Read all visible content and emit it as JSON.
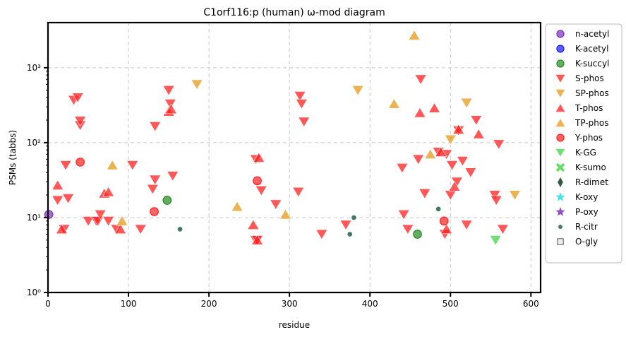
{
  "chart_data": {
    "type": "scatter",
    "title": "C1orf116:p (human) ω-mod diagram",
    "xlabel": "residue",
    "ylabel": "PSMs (tabbs)",
    "xlim": [
      0,
      612
    ],
    "ylim": [
      1,
      4000
    ],
    "yscale": "log",
    "x_ticks": [
      0,
      100,
      200,
      300,
      400,
      500,
      600
    ],
    "x_tick_labels": [
      "0",
      "100",
      "200",
      "300",
      "400",
      "500",
      "600"
    ],
    "y_ticks": [
      1,
      10,
      100,
      1000
    ],
    "y_tick_labels": [
      "10⁰",
      "10¹",
      "10²",
      "10³"
    ],
    "grid": true,
    "legend_position": "outside-right",
    "series": [
      {
        "name": "n-acetyl",
        "marker": "circle",
        "color": "#7f2fbf",
        "points": [
          [
            1,
            11
          ]
        ]
      },
      {
        "name": "K-acetyl",
        "marker": "circle",
        "color": "#1a1aff",
        "points": []
      },
      {
        "name": "K-succyl",
        "marker": "circle",
        "color": "#228b22",
        "points": [
          [
            148,
            17
          ],
          [
            459,
            6
          ]
        ]
      },
      {
        "name": "S-phos",
        "marker": "triangle-down",
        "color": "#ff2020",
        "points": [
          [
            12,
            17
          ],
          [
            20,
            7
          ],
          [
            22,
            50
          ],
          [
            25,
            18
          ],
          [
            32,
            370
          ],
          [
            37,
            400
          ],
          [
            40,
            170
          ],
          [
            40,
            195
          ],
          [
            50,
            9
          ],
          [
            60,
            9
          ],
          [
            62,
            9
          ],
          [
            65,
            11
          ],
          [
            75,
            9
          ],
          [
            85,
            7
          ],
          [
            105,
            50
          ],
          [
            115,
            7
          ],
          [
            130,
            24
          ],
          [
            133,
            32
          ],
          [
            133,
            165
          ],
          [
            150,
            500
          ],
          [
            152,
            330
          ],
          [
            155,
            36
          ],
          [
            258,
            60
          ],
          [
            258,
            5
          ],
          [
            260,
            5
          ],
          [
            265,
            23
          ],
          [
            283,
            15
          ],
          [
            311,
            22
          ],
          [
            313,
            420
          ],
          [
            315,
            330
          ],
          [
            318,
            190
          ],
          [
            340,
            6
          ],
          [
            370,
            8
          ],
          [
            440,
            46
          ],
          [
            442,
            11
          ],
          [
            447,
            7
          ],
          [
            460,
            60
          ],
          [
            463,
            700
          ],
          [
            468,
            21
          ],
          [
            485,
            75
          ],
          [
            493,
            6
          ],
          [
            495,
            70
          ],
          [
            500,
            20
          ],
          [
            502,
            50
          ],
          [
            508,
            30
          ],
          [
            510,
            145
          ],
          [
            515,
            57
          ],
          [
            520,
            8
          ],
          [
            525,
            40
          ],
          [
            532,
            200
          ],
          [
            555,
            20
          ],
          [
            557,
            17
          ],
          [
            560,
            95
          ],
          [
            565,
            7
          ]
        ]
      },
      {
        "name": "SP-phos",
        "marker": "triangle-down",
        "color": "#e69a1a",
        "points": [
          [
            185,
            600
          ],
          [
            385,
            500
          ],
          [
            500,
            110
          ],
          [
            520,
            340
          ],
          [
            580,
            20
          ]
        ]
      },
      {
        "name": "T-phos",
        "marker": "triangle-up",
        "color": "#ff2020",
        "points": [
          [
            12,
            27
          ],
          [
            17,
            7
          ],
          [
            70,
            21
          ],
          [
            75,
            22
          ],
          [
            90,
            7
          ],
          [
            150,
            260
          ],
          [
            153,
            280
          ],
          [
            255,
            8
          ],
          [
            260,
            5
          ],
          [
            262,
            63
          ],
          [
            462,
            250
          ],
          [
            480,
            290
          ],
          [
            488,
            75
          ],
          [
            495,
            7
          ],
          [
            505,
            26
          ],
          [
            510,
            150
          ],
          [
            535,
            130
          ]
        ]
      },
      {
        "name": "TP-phos",
        "marker": "triangle-up",
        "color": "#e69a1a",
        "points": [
          [
            80,
            50
          ],
          [
            92,
            9
          ],
          [
            235,
            14
          ],
          [
            295,
            11
          ],
          [
            430,
            330
          ],
          [
            455,
            2700
          ],
          [
            475,
            70
          ]
        ]
      },
      {
        "name": "Y-phos",
        "marker": "circle",
        "color": "#ff2020",
        "points": [
          [
            40,
            55
          ],
          [
            132,
            12
          ],
          [
            260,
            31
          ],
          [
            492,
            9
          ]
        ]
      },
      {
        "name": "K-GG",
        "marker": "triangle-down",
        "color": "#44d444",
        "points": [
          [
            556,
            5
          ]
        ]
      },
      {
        "name": "K-sumo",
        "marker": "x",
        "color": "#44d444",
        "points": []
      },
      {
        "name": "R-dimet",
        "marker": "diamond",
        "color": "#0d3d1d",
        "points": []
      },
      {
        "name": "K-oxy",
        "marker": "star",
        "color": "#22e0e0",
        "points": []
      },
      {
        "name": "P-oxy",
        "marker": "star",
        "color": "#7f2fbf",
        "points": []
      },
      {
        "name": "R-citr",
        "marker": "small-circle",
        "color": "#2d6d4d",
        "points": [
          [
            164,
            7
          ],
          [
            375,
            6
          ],
          [
            380,
            10
          ],
          [
            485,
            13
          ]
        ]
      },
      {
        "name": "O-gly",
        "marker": "square-outline",
        "color": "#888888",
        "points": []
      }
    ]
  }
}
